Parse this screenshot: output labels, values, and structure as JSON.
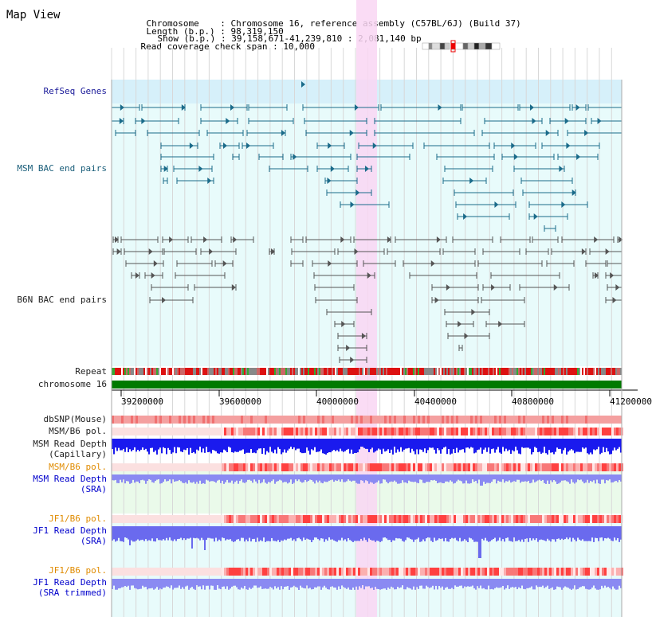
{
  "window": {
    "title": "Map View"
  },
  "info": {
    "chromosome_key": "Chromosome    : ",
    "chromosome_val": "Chromosome 16, reference assembly (C57BL/6J) (Build 37)",
    "length_key": "Length (b.p.) : ",
    "length_val": "98,319,150",
    "show_key": "Show (b.p.) : ",
    "show_val": "39,158,671-41,239,810 : 2,081,140 bp",
    "coverage_key": "Read coverage check span : ",
    "coverage_val": "10,000"
  },
  "tracks": {
    "refseq": "RefSeq Genes",
    "msm_bac": "MSM BAC end pairs",
    "b6n_bac": "B6N BAC end pairs",
    "repeat": "Repeat",
    "chromosome": "chromosome 16",
    "dbsnp": "dbSNP(Mouse)",
    "msm_b6_pol_1": "MSM/B6 pol.",
    "msm_read_depth_cap_1": "MSM Read Depth",
    "msm_read_depth_cap_2": "(Capillary)",
    "msm_b6_pol_2": "MSM/B6 pol.",
    "msm_read_depth_sra_1": "MSM Read Depth",
    "msm_read_depth_sra_2": "(SRA)",
    "jf1_b6_pol_1": "JF1/B6 pol.",
    "jf1_read_depth_sra_1": "JF1 Read Depth",
    "jf1_read_depth_sra_2": "(SRA)",
    "jf1_b6_pol_2": "JF1/B6 pol.",
    "jf1_read_depth_trim_1": "JF1 Read Depth",
    "jf1_read_depth_trim_2": "(SRA trimmed)"
  },
  "axis": {
    "ticks": [
      "39200000",
      "39600000",
      "40000000",
      "40400000",
      "40800000",
      "41200000"
    ]
  },
  "colors": {
    "refseq_bg": "#d6f0fa",
    "lightcyan_bg": "#e8fbfb",
    "highlight": "#f9d6f3",
    "gene": "#1a6b8a",
    "bac_gray": "#555555",
    "chromosome_bar": "#007a00",
    "depth_blue": "#1a1aee",
    "depth_lightblue": "#8a8af2"
  },
  "icons": {
    "ideogram": "chromosome-ideogram-icon"
  }
}
